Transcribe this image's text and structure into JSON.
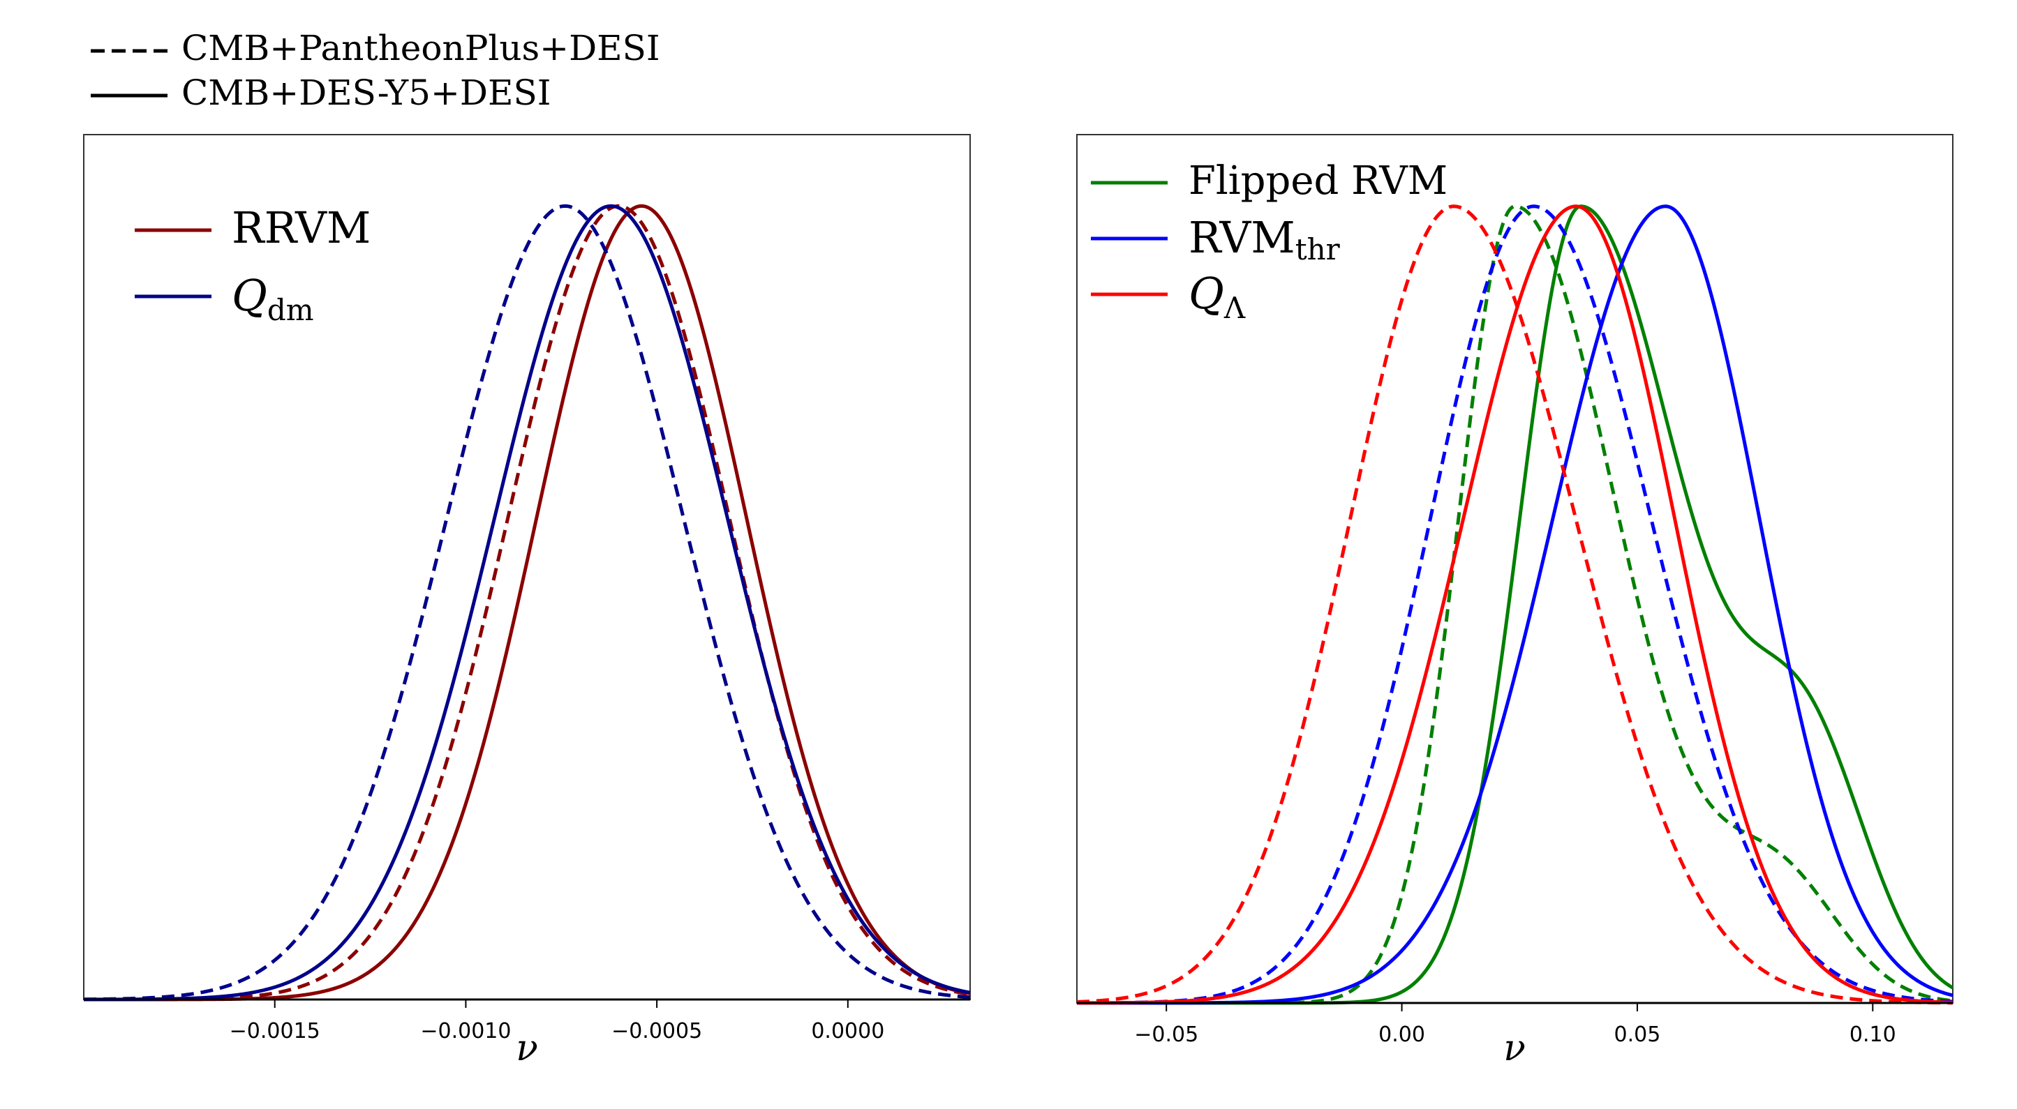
{
  "global_legend": {
    "entries": [
      {
        "label": "CMB+PantheonPlus+DESI",
        "style": "dashed"
      },
      {
        "label": "CMB+DES-Y5+DESI",
        "style": "solid"
      }
    ]
  },
  "chart_data": [
    {
      "type": "line",
      "title": "",
      "xlabel": "ν",
      "ylabel": "",
      "xlim": [
        -0.002,
        0.00032
      ],
      "ylim": [
        0,
        1.09
      ],
      "xticks": [
        -0.0015,
        -0.001,
        -0.0005,
        0.0
      ],
      "xtick_labels": [
        "−0.0015",
        "−0.0010",
        "−0.0005",
        "0.0000"
      ],
      "legend": [
        {
          "label": "RRVM",
          "color": "#8b0000"
        },
        {
          "label": "Q_dm",
          "label_main": "Q",
          "label_sub": "dm",
          "color": "#00008b"
        }
      ],
      "series": [
        {
          "name": "RRVM — CMB+DES-Y5+DESI",
          "color": "#8b0000",
          "style": "solid",
          "shape": "gauss",
          "mu": -0.00054,
          "sigma": 0.000275
        },
        {
          "name": "RRVM — CMB+PantheonPlus+DESI",
          "color": "#8b0000",
          "style": "dashed",
          "shape": "gauss",
          "mu": -0.0006,
          "sigma": 0.00029
        },
        {
          "name": "Q_dm — CMB+DES-Y5+DESI",
          "color": "#00008b",
          "style": "solid",
          "shape": "gauss",
          "mu": -0.00062,
          "sigma": 0.000305
        },
        {
          "name": "Q_dm — CMB+PantheonPlus+DESI",
          "color": "#00008b",
          "style": "dashed",
          "shape": "gauss",
          "mu": -0.00074,
          "sigma": 0.00031
        }
      ]
    },
    {
      "type": "line",
      "title": "",
      "xlabel": "ν",
      "ylabel": "",
      "xlim": [
        -0.069,
        0.117
      ],
      "ylim": [
        0,
        1.09
      ],
      "xticks": [
        -0.05,
        0.0,
        0.05,
        0.1
      ],
      "xtick_labels": [
        "−0.05",
        "0.00",
        "0.05",
        "0.10"
      ],
      "legend": [
        {
          "label": "Flipped RVM",
          "color": "#008000"
        },
        {
          "label": "RVM_thr",
          "label_main": "RVM",
          "label_sub": "thr",
          "color": "#0000ff"
        },
        {
          "label": "Q_Λ",
          "label_main": "Q",
          "label_sub": "Λ",
          "color": "#ff0000"
        }
      ],
      "series": [
        {
          "name": "Flipped RVM — CMB+DES-Y5+DESI",
          "color": "#008000",
          "style": "solid",
          "shape": "skew",
          "mu": 0.038,
          "sigma_left": 0.013,
          "sigma_right": 0.022,
          "bump": {
            "mu": 0.086,
            "sigma": 0.013,
            "amp": 0.3
          }
        },
        {
          "name": "Flipped RVM — CMB+PantheonPlus+DESI",
          "color": "#008000",
          "style": "dashed",
          "shape": "skew",
          "mu": 0.024,
          "sigma_left": 0.012,
          "sigma_right": 0.022,
          "bump": {
            "mu": 0.08,
            "sigma": 0.013,
            "amp": 0.15
          }
        },
        {
          "name": "RVM_thr — CMB+DES-Y5+DESI",
          "color": "#0000ff",
          "style": "solid",
          "shape": "skew",
          "mu": 0.056,
          "sigma_left": 0.024,
          "sigma_right": 0.02
        },
        {
          "name": "RVM_thr — CMB+PantheonPlus+DESI",
          "color": "#0000ff",
          "style": "dashed",
          "shape": "skew",
          "mu": 0.028,
          "sigma_left": 0.022,
          "sigma_right": 0.025
        },
        {
          "name": "Q_Λ — CMB+DES-Y5+DESI",
          "color": "#ff0000",
          "style": "solid",
          "shape": "skew",
          "mu": 0.037,
          "sigma_left": 0.024,
          "sigma_right": 0.021
        },
        {
          "name": "Q_Λ — CMB+PantheonPlus+DESI",
          "color": "#ff0000",
          "style": "dashed",
          "shape": "skew",
          "mu": 0.011,
          "sigma_left": 0.022,
          "sigma_right": 0.026
        }
      ]
    }
  ]
}
